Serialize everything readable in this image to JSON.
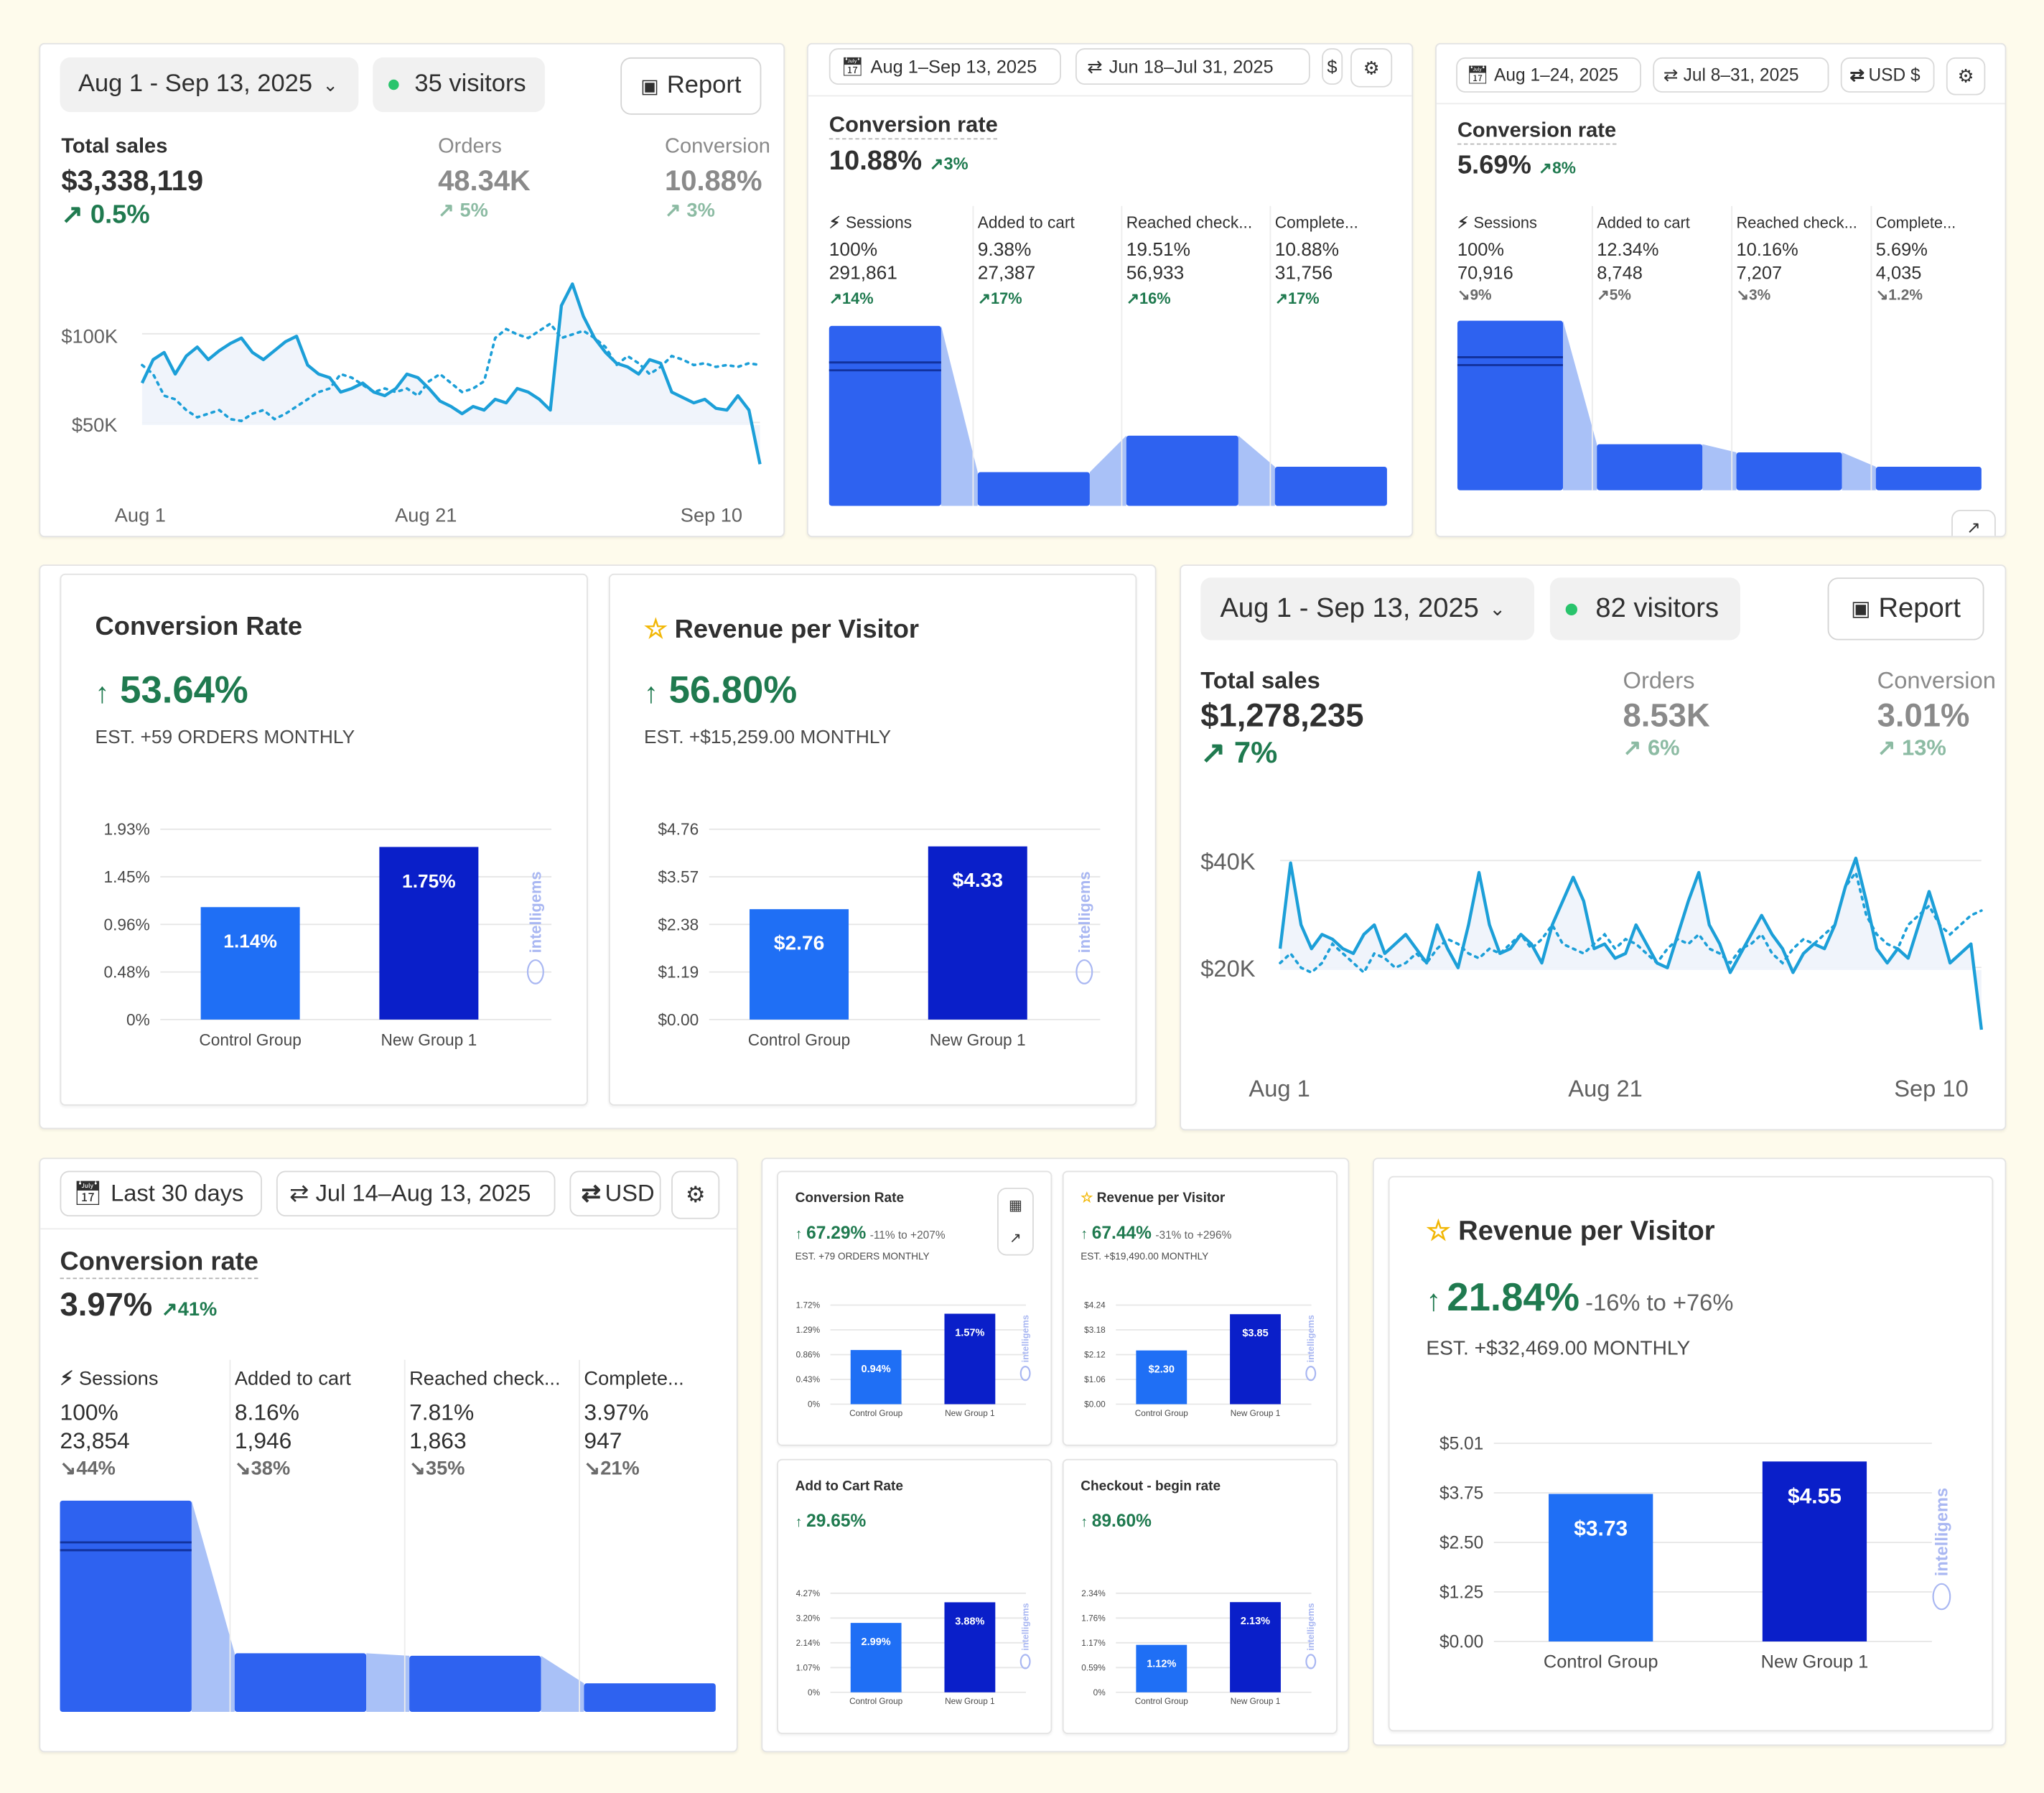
{
  "colors": {
    "bg": "#fefbec",
    "line": "#1c9fd8",
    "green": "#1f7a4f",
    "bar_light": "#1f6ff5",
    "bar_dark": "#0a1fc9",
    "funnel": "#2e62f0"
  },
  "overview_a": {
    "date": "Aug 1 - Sep 13, 2025",
    "visitors": "35 visitors",
    "report": "Report",
    "total_label": "Total sales",
    "total_value": "$3,338,119",
    "total_change": "0.5%",
    "orders_label": "Orders",
    "orders_value": "48.34K",
    "orders_change": "5%",
    "conv_label": "Conversion",
    "conv_value": "10.88%",
    "conv_change": "3%",
    "y_ticks": [
      "$100K",
      "$50K"
    ],
    "x_ticks": [
      "Aug 1",
      "Aug 21",
      "Sep 10"
    ]
  },
  "funnel_a": {
    "date1": "Aug 1–Sep 13, 2025",
    "date2": "Jun 18–Jul 31, 2025",
    "currency": "$",
    "title": "Conversion rate",
    "value": "10.88%",
    "change": "3%",
    "steps": [
      {
        "label": "Sessions",
        "pct": "100%",
        "count": "291,861",
        "change": "14%"
      },
      {
        "label": "Added to cart",
        "pct": "9.38%",
        "count": "27,387",
        "change": "17%"
      },
      {
        "label": "Reached check...",
        "pct": "19.51%",
        "count": "56,933",
        "change": "16%"
      },
      {
        "label": "Complete...",
        "pct": "10.88%",
        "count": "31,756",
        "change": "17%"
      }
    ]
  },
  "funnel_b": {
    "date1": "Aug 1–24, 2025",
    "date2": "Jul 8–31, 2025",
    "currency": "USD $",
    "title": "Conversion rate",
    "value": "5.69%",
    "change": "8%",
    "steps": [
      {
        "label": "Sessions",
        "pct": "100%",
        "count": "70,916",
        "change": "9%"
      },
      {
        "label": "Added to cart",
        "pct": "12.34%",
        "count": "8,748",
        "change": "5%"
      },
      {
        "label": "Reached check...",
        "pct": "10.16%",
        "count": "7,207",
        "change": "3%"
      },
      {
        "label": "Complete...",
        "pct": "5.69%",
        "count": "4,035",
        "change": "1.2%"
      }
    ]
  },
  "ig_conv": {
    "title": "Conversion Rate",
    "value": "53.64%",
    "est": "EST. +59 ORDERS MONTHLY",
    "y_ticks": [
      "1.93%",
      "1.45%",
      "0.96%",
      "0.48%",
      "0%"
    ],
    "bars": [
      {
        "label": "Control Group",
        "value": "1.14%"
      },
      {
        "label": "New Group 1",
        "value": "1.75%"
      }
    ],
    "brand": "intelligems"
  },
  "ig_rpv": {
    "title": "Revenue per Visitor",
    "value": "56.80%",
    "est": "EST. +$15,259.00 MONTHLY",
    "y_ticks": [
      "$4.76",
      "$3.57",
      "$2.38",
      "$1.19",
      "$0.00"
    ],
    "bars": [
      {
        "label": "Control Group",
        "value": "$2.76"
      },
      {
        "label": "New Group 1",
        "value": "$4.33"
      }
    ],
    "brand": "intelligems"
  },
  "overview_b": {
    "date": "Aug 1 - Sep 13, 2025",
    "visitors": "82 visitors",
    "report": "Report",
    "total_label": "Total sales",
    "total_value": "$1,278,235",
    "total_change": "7%",
    "orders_label": "Orders",
    "orders_value": "8.53K",
    "orders_change": "6%",
    "conv_label": "Conversion",
    "conv_value": "3.01%",
    "conv_change": "13%",
    "y_ticks": [
      "$40K",
      "$20K"
    ],
    "x_ticks": [
      "Aug 1",
      "Aug 21",
      "Sep 10"
    ]
  },
  "funnel_c": {
    "date1": "Last 30 days",
    "date2": "Jul 14–Aug 13, 2025",
    "currency": "USD",
    "title": "Conversion rate",
    "value": "3.97%",
    "change": "41%",
    "steps": [
      {
        "label": "Sessions",
        "pct": "100%",
        "count": "23,854",
        "change": "44%"
      },
      {
        "label": "Added to cart",
        "pct": "8.16%",
        "count": "1,946",
        "change": "38%"
      },
      {
        "label": "Reached check...",
        "pct": "7.81%",
        "count": "1,863",
        "change": "35%"
      },
      {
        "label": "Complete...",
        "pct": "3.97%",
        "count": "947",
        "change": "21%"
      }
    ]
  },
  "mini": [
    {
      "title": "Conversion Rate",
      "value": "67.29%",
      "range": "-11% to +207%",
      "est": "EST. +79 ORDERS MONTHLY",
      "y_ticks": [
        "1.72%",
        "1.29%",
        "0.86%",
        "0.43%",
        "0%"
      ],
      "bars": [
        {
          "label": "Control Group",
          "value": "0.94%"
        },
        {
          "label": "New Group 1",
          "value": "1.57%"
        }
      ]
    },
    {
      "title": "Revenue per Visitor",
      "value": "67.44%",
      "range": "-31% to +296%",
      "est": "EST. +$19,490.00 MONTHLY",
      "y_ticks": [
        "$4.24",
        "$3.18",
        "$2.12",
        "$1.06",
        "$0.00"
      ],
      "bars": [
        {
          "label": "Control Group",
          "value": "$2.30"
        },
        {
          "label": "New Group 1",
          "value": "$3.85"
        }
      ]
    },
    {
      "title": "Add to Cart Rate",
      "value": "29.65%",
      "range": "",
      "est": "",
      "y_ticks": [
        "4.27%",
        "3.20%",
        "2.14%",
        "1.07%",
        "0%"
      ],
      "bars": [
        {
          "label": "Control Group",
          "value": "2.99%"
        },
        {
          "label": "New Group 1",
          "value": "3.88%"
        }
      ]
    },
    {
      "title": "Checkout - begin rate",
      "value": "89.60%",
      "range": "",
      "est": "",
      "y_ticks": [
        "2.34%",
        "1.76%",
        "1.17%",
        "0.59%",
        "0%"
      ],
      "bars": [
        {
          "label": "Control Group",
          "value": "1.12%"
        },
        {
          "label": "New Group 1",
          "value": "2.13%"
        }
      ]
    }
  ],
  "mini_brand": "intelligems",
  "ig_rpv2": {
    "title": "Revenue per Visitor",
    "value": "21.84%",
    "range": "-16% to +76%",
    "est": "EST. +$32,469.00 MONTHLY",
    "y_ticks": [
      "$5.01",
      "$3.75",
      "$2.50",
      "$1.25",
      "$0.00"
    ],
    "bars": [
      {
        "label": "Control Group",
        "value": "$3.73"
      },
      {
        "label": "New Group 1",
        "value": "$4.55"
      }
    ],
    "brand": "intelligems"
  },
  "chart_data": [
    {
      "type": "bar",
      "title": "Conversion Rate",
      "categories": [
        "Control Group",
        "New Group 1"
      ],
      "values": [
        1.14,
        1.75
      ],
      "ylim": [
        0,
        1.93
      ]
    },
    {
      "type": "bar",
      "title": "Revenue per Visitor",
      "categories": [
        "Control Group",
        "New Group 1"
      ],
      "values": [
        2.76,
        4.33
      ],
      "ylim": [
        0,
        4.76
      ]
    },
    {
      "type": "bar",
      "title": "Conversion Rate",
      "categories": [
        "Control Group",
        "New Group 1"
      ],
      "values": [
        0.94,
        1.57
      ],
      "ylim": [
        0,
        1.72
      ]
    },
    {
      "type": "bar",
      "title": "Revenue per Visitor",
      "categories": [
        "Control Group",
        "New Group 1"
      ],
      "values": [
        2.3,
        3.85
      ],
      "ylim": [
        0,
        4.24
      ]
    },
    {
      "type": "bar",
      "title": "Add to Cart Rate",
      "categories": [
        "Control Group",
        "New Group 1"
      ],
      "values": [
        2.99,
        3.88
      ],
      "ylim": [
        0,
        4.27
      ]
    },
    {
      "type": "bar",
      "title": "Checkout - begin rate",
      "categories": [
        "Control Group",
        "New Group 1"
      ],
      "values": [
        1.12,
        2.13
      ],
      "ylim": [
        0,
        2.34
      ]
    },
    {
      "type": "bar",
      "title": "Revenue per Visitor",
      "categories": [
        "Control Group",
        "New Group 1"
      ],
      "values": [
        3.73,
        4.55
      ],
      "ylim": [
        0,
        5.01
      ]
    },
    {
      "type": "line",
      "title": "Total sales",
      "x_ticks": [
        "Aug 1",
        "Aug 21",
        "Sep 10"
      ],
      "ylim": [
        30000,
        140000
      ],
      "series": [
        {
          "values": [
            75000,
            88000,
            92000,
            80000,
            90000,
            95000,
            88000,
            93000,
            97000,
            100000,
            92000,
            88000,
            93000,
            98000,
            101000,
            85000,
            80000,
            78000,
            70000,
            72000,
            75000,
            70000,
            68000,
            72000,
            80000,
            78000,
            72000,
            65000,
            62000,
            58000,
            62000,
            60000,
            66000,
            64000,
            72000,
            70000,
            66000,
            60000,
            118000,
            130000,
            112000,
            100000,
            92000,
            86000,
            84000,
            80000,
            88000,
            86000,
            70000,
            67000,
            64000,
            66000,
            61000,
            60000,
            68000,
            60000,
            30000
          ]
        },
        {
          "values": [
            85000,
            80000,
            68000,
            66000,
            60000,
            56000,
            58000,
            60000,
            55000,
            54000,
            58000,
            60000,
            55000,
            58000,
            62000,
            66000,
            70000,
            72000,
            80000,
            78000,
            74000,
            70000,
            72000,
            70000,
            72000,
            68000,
            76000,
            80000,
            75000,
            70000,
            72000,
            76000,
            100000,
            105000,
            102000,
            100000,
            104000,
            108000,
            100000,
            102000,
            104000,
            100000,
            95000,
            85000,
            90000,
            86000,
            80000,
            84000,
            90000,
            88000,
            85000,
            86000,
            84000,
            85000,
            84000,
            86000,
            85000
          ]
        }
      ]
    },
    {
      "type": "line",
      "title": "Total sales",
      "x_ticks": [
        "Aug 1",
        "Aug 21",
        "Sep 10"
      ],
      "ylim": [
        0,
        52000
      ],
      "series": [
        {
          "values": [
            25000,
            43000,
            30000,
            25000,
            28000,
            27000,
            25000,
            24000,
            28000,
            30000,
            24000,
            26000,
            28000,
            25000,
            22000,
            30000,
            25000,
            21000,
            30000,
            41000,
            30000,
            24000,
            25000,
            28000,
            26000,
            22000,
            30000,
            35000,
            40000,
            35000,
            25000,
            26000,
            23000,
            24000,
            30000,
            26000,
            22000,
            21000,
            28000,
            35000,
            41000,
            30000,
            26000,
            20000,
            24000,
            28000,
            32000,
            28000,
            25000,
            20000,
            24000,
            26000,
            25000,
            30000,
            38000,
            44000,
            35000,
            25000,
            22000,
            25000,
            23000,
            30000,
            37000,
            30000,
            22000,
            24000,
            26000,
            8000
          ]
        },
        {
          "values": [
            22000,
            24000,
            21000,
            20000,
            22000,
            26000,
            24000,
            22000,
            20000,
            24000,
            23000,
            21000,
            22000,
            24000,
            22000,
            25000,
            27000,
            26000,
            24000,
            23000,
            25000,
            24000,
            26000,
            28000,
            25000,
            27000,
            30000,
            26000,
            25000,
            24000,
            26000,
            28000,
            25000,
            27000,
            26000,
            24000,
            22000,
            25000,
            27000,
            26000,
            28000,
            25000,
            24000,
            22000,
            25000,
            26000,
            28000,
            24000,
            22000,
            25000,
            27000,
            26000,
            28000,
            30000,
            38000,
            41000,
            32000,
            28000,
            26000,
            25000,
            30000,
            32000,
            34000,
            30000,
            28000,
            30000,
            32000,
            33000
          ]
        }
      ]
    },
    {
      "type": "bar",
      "title": "Conversion rate",
      "categories": [
        "Sessions",
        "Added to cart",
        "Reached check...",
        "Complete..."
      ],
      "values": [
        100,
        9.38,
        19.51,
        10.88
      ]
    },
    {
      "type": "bar",
      "title": "Conversion rate",
      "categories": [
        "Sessions",
        "Added to cart",
        "Reached check...",
        "Complete..."
      ],
      "values": [
        100,
        12.34,
        10.16,
        5.69
      ]
    },
    {
      "type": "bar",
      "title": "Conversion rate",
      "categories": [
        "Sessions",
        "Added to cart",
        "Reached check...",
        "Complete..."
      ],
      "values": [
        100,
        8.16,
        7.81,
        3.97
      ]
    }
  ]
}
